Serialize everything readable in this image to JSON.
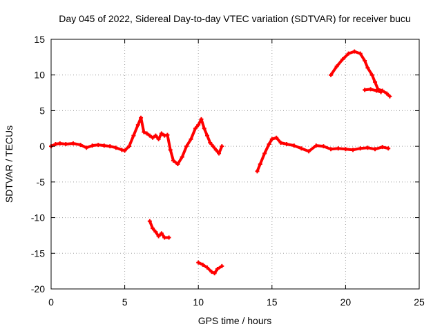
{
  "chart_data": {
    "type": "scatter",
    "title": "Day 045 of 2022, Sidereal Day-to-day VTEC variation (SDTVAR) for receiver bucu",
    "xlabel": "GPS time / hours",
    "ylabel": "SDTVAR / TECUs",
    "xlim": [
      0,
      25
    ],
    "ylim": [
      -20,
      15
    ],
    "x_ticks": [
      0,
      5,
      10,
      15,
      20,
      25
    ],
    "y_ticks": [
      -20,
      -15,
      -10,
      -5,
      0,
      5,
      10,
      15
    ],
    "x_tick_labels": [
      "0",
      "5",
      "10",
      "15",
      "20",
      "25"
    ],
    "y_tick_labels": [
      "-20",
      "-15",
      "-10",
      "-5",
      "0",
      "5",
      "10",
      "15"
    ],
    "grid": true,
    "color": "#ff0000",
    "series": [
      {
        "name": "main-track-a",
        "x": [
          0.0,
          0.3,
          0.6,
          1.0,
          1.5,
          2.0,
          2.4,
          2.8,
          3.2,
          3.6,
          4.0,
          4.4,
          4.8,
          5.0,
          5.3,
          5.6,
          5.9,
          6.1,
          6.3,
          6.5,
          6.7,
          6.9,
          7.1,
          7.3,
          7.5,
          7.7,
          7.9,
          8.1,
          8.3,
          8.6,
          8.9,
          9.2,
          9.5,
          9.8,
          10.0,
          10.2,
          10.4,
          10.6,
          10.8,
          11.0,
          11.2,
          11.4,
          11.6
        ],
        "y": [
          0.0,
          0.3,
          0.4,
          0.3,
          0.4,
          0.2,
          -0.2,
          0.1,
          0.2,
          0.1,
          0.0,
          -0.2,
          -0.5,
          -0.6,
          0.0,
          1.5,
          3.0,
          4.0,
          2.0,
          1.8,
          1.5,
          1.2,
          1.5,
          1.0,
          1.8,
          1.5,
          1.6,
          -0.5,
          -2.0,
          -2.5,
          -1.5,
          0.0,
          1.0,
          2.5,
          3.0,
          3.8,
          2.5,
          1.5,
          0.5,
          0.0,
          -0.5,
          -1.0,
          0.0
        ]
      },
      {
        "name": "main-track-b",
        "x": [
          14.0,
          14.2,
          14.5,
          14.8,
          15.0,
          15.3,
          15.6,
          16.0,
          16.5,
          17.0,
          17.5,
          18.0,
          18.5,
          19.0,
          19.5,
          20.0,
          20.5,
          21.0,
          21.5,
          22.0,
          22.5,
          22.9
        ],
        "y": [
          -3.5,
          -2.5,
          -1.0,
          0.3,
          1.0,
          1.2,
          0.5,
          0.3,
          0.1,
          -0.3,
          -0.7,
          0.1,
          0.0,
          -0.4,
          -0.3,
          -0.4,
          -0.5,
          -0.3,
          -0.2,
          -0.4,
          -0.1,
          -0.3
        ]
      },
      {
        "name": "upper-arc",
        "x": [
          19.0,
          19.4,
          19.8,
          20.2,
          20.6,
          21.0,
          21.3,
          21.5,
          21.8,
          22.0,
          22.2,
          22.5,
          22.8,
          23.0
        ],
        "y": [
          10.0,
          11.2,
          12.2,
          13.0,
          13.3,
          13.0,
          12.0,
          11.0,
          10.0,
          9.0,
          8.0,
          7.8,
          7.4,
          7.0
        ]
      },
      {
        "name": "upper-tail",
        "x": [
          21.3,
          21.7,
          22.1,
          22.4
        ],
        "y": [
          7.9,
          8.0,
          7.8,
          7.6
        ]
      },
      {
        "name": "low-track-a",
        "x": [
          6.7,
          6.9,
          7.1,
          7.3,
          7.5,
          7.7,
          8.0
        ],
        "y": [
          -10.5,
          -11.5,
          -12.0,
          -12.6,
          -12.2,
          -12.8,
          -12.8
        ]
      },
      {
        "name": "low-track-b",
        "x": [
          10.0,
          10.3,
          10.6,
          10.9,
          11.1,
          11.3,
          11.6
        ],
        "y": [
          -16.3,
          -16.6,
          -17.0,
          -17.6,
          -17.8,
          -17.2,
          -16.8
        ]
      }
    ]
  }
}
